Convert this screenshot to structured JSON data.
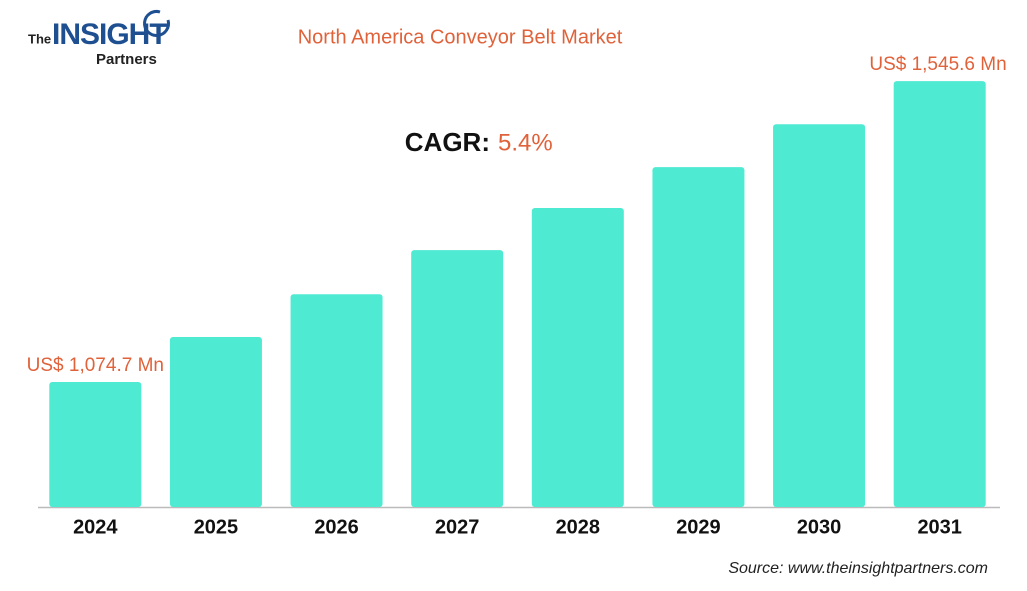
{
  "logo": {
    "the": "The",
    "insight": "INSIGHT",
    "partners": "Partners"
  },
  "chart_data": {
    "type": "bar",
    "title": "North America Conveyor Belt Market",
    "cagr_label": "CAGR:",
    "cagr_value": "5.4%",
    "categories": [
      "2024",
      "2025",
      "2026",
      "2027",
      "2028",
      "2029",
      "2030",
      "2031"
    ],
    "values": [
      1074.7,
      1145,
      1212,
      1281,
      1347,
      1411,
      1478,
      1545.6
    ],
    "value_labels": [
      "US$ 1,074.7 Mn",
      null,
      null,
      null,
      null,
      null,
      null,
      "US$ 1,545.6 Mn"
    ],
    "color": "#4eead2",
    "ylim": [
      879,
      1563
    ],
    "source": "Source: www.theinsightpartners.com"
  }
}
